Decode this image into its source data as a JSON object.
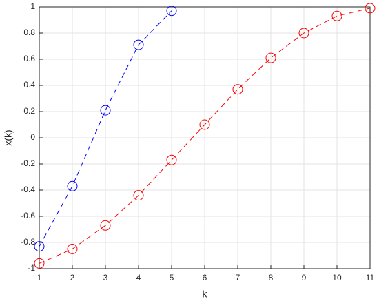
{
  "chart_data": {
    "type": "line",
    "x_label": "k",
    "y_label": "x(k)",
    "series": [
      {
        "color": "#0000ff",
        "x": [
          1,
          2,
          3,
          4,
          5
        ],
        "values": [
          -0.83,
          -0.37,
          0.21,
          0.71,
          0.97
        ]
      },
      {
        "color": "#ff0000",
        "x": [
          1,
          2,
          3,
          4,
          5,
          6,
          7,
          8,
          9,
          10,
          11
        ],
        "values": [
          -0.96,
          -0.85,
          -0.67,
          -0.44,
          -0.17,
          0.1,
          0.37,
          0.61,
          0.8,
          0.93,
          0.99
        ]
      }
    ],
    "xlim": [
      1,
      11
    ],
    "xticks": [
      1,
      2,
      3,
      4,
      5,
      6,
      7,
      8,
      9,
      10,
      11
    ],
    "ylim": [
      -1,
      1
    ],
    "yticks": [
      -1,
      -0.8,
      -0.6,
      -0.4,
      -0.2,
      0,
      0.2,
      0.4,
      0.6,
      0.8,
      1
    ],
    "grid": true
  }
}
